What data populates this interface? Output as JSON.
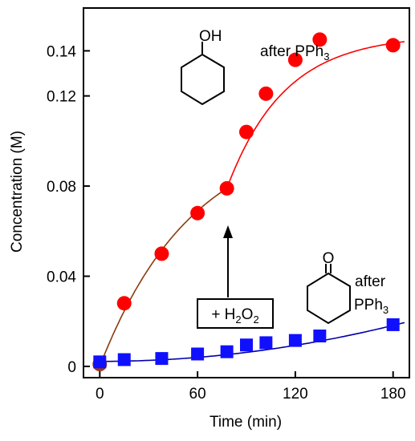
{
  "chart_data": {
    "type": "scatter",
    "title": "",
    "xlabel": "Time (min)",
    "ylabel": "Concentration  (M)",
    "xlim": [
      -10,
      190
    ],
    "ylim": [
      -0.005,
      0.159
    ],
    "x_ticks": [
      0,
      60,
      120,
      180
    ],
    "x_tick_labels": [
      "0",
      "60",
      "120",
      "180"
    ],
    "y_ticks": [
      0,
      0.04,
      0.08,
      0.12,
      0.14
    ],
    "y_tick_labels": [
      "0",
      "0.04",
      "0.08",
      "0.12",
      "0.14"
    ],
    "grid": false,
    "legend": "none",
    "series": [
      {
        "marker": "circle",
        "color": "#ff0000",
        "x": [
          0,
          15,
          38,
          60,
          78,
          90,
          102,
          120,
          135,
          180
        ],
        "y": [
          0.001,
          0.028,
          0.05,
          0.068,
          0.079,
          0.104,
          0.121,
          0.136,
          0.145,
          0.1425
        ]
      },
      {
        "marker": "square",
        "color": "#1010ff",
        "x": [
          0,
          15,
          38,
          60,
          78,
          90,
          102,
          120,
          135,
          180
        ],
        "y": [
          0.002,
          0.003,
          0.0035,
          0.0055,
          0.0065,
          0.0095,
          0.0105,
          0.0115,
          0.0135,
          0.0185
        ]
      }
    ],
    "fits": [
      {
        "color": "#8b3a0a",
        "from": 0,
        "to": 78,
        "model": "exp",
        "a": 0.1058,
        "k": 0.0176
      },
      {
        "color": "#ff0000",
        "from": 78,
        "to": 187,
        "model": "exp_offset",
        "y0": 0.079,
        "a": 0.0682,
        "k": 0.0283
      },
      {
        "color": "#0000aa",
        "from": 0,
        "to": 187,
        "model": "quad",
        "c0": 0.0022,
        "c1": 6e-07,
        "c2": 4.9e-07
      }
    ],
    "annotations": {
      "after_top": {
        "text": "after PPh",
        "sub": "3"
      },
      "after_bottom_1": {
        "text": "after"
      },
      "after_bottom_2": {
        "text": "PPh",
        "sub": "3"
      },
      "oh_label": {
        "text": "OH"
      },
      "ketone_o_label": {
        "text": "O"
      },
      "h2o2_box": {
        "parts": [
          "+ H",
          "2",
          "O",
          "2"
        ]
      }
    }
  }
}
